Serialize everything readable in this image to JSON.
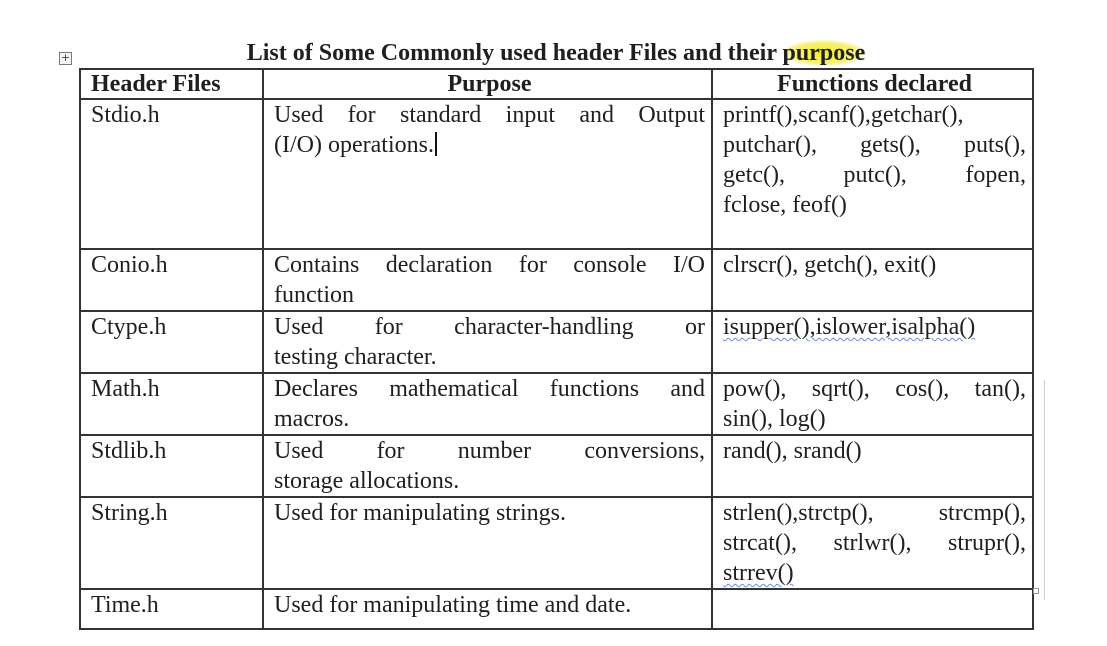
{
  "table_handle_glyph": "+",
  "title": {
    "before": "List of Some Commonly used header Files and their ",
    "highlight": "purpose"
  },
  "headers": {
    "files": "Header Files",
    "purpose": "Purpose",
    "functions_a": "Fun",
    "functions_b": "ctions de",
    "functions_c": "clared"
  },
  "rows": [
    {
      "file": "Stdio.h",
      "purpose_lines": [
        "Used for standard input and Output",
        "(I/O) operations."
      ],
      "function_lines": [
        "printf(),scanf(),getchar(),",
        "putchar(), gets(), puts(),",
        "getc(), putc(), fopen,",
        "fclose, feof()"
      ]
    },
    {
      "file": "Conio.h",
      "purpose_lines": [
        "Contains declaration for console I/O",
        "function"
      ],
      "function_lines": [
        "clrscr(), getch(), exit()"
      ]
    },
    {
      "file": "Ctype.h",
      "purpose_lines": [
        "Used for character-handling or",
        "testing character."
      ],
      "function_lines": [
        "isupper(),islower,isalpha()"
      ]
    },
    {
      "file": "Math.h",
      "purpose_lines": [
        "Declares mathematical functions and",
        "macros."
      ],
      "function_lines": [
        "pow(), sqrt(), cos(), tan(),",
        "sin(), log()"
      ]
    },
    {
      "file": "Stdlib.h",
      "purpose_lines": [
        "Used for number conversions,",
        "storage allocations."
      ],
      "function_lines": [
        "rand(), srand()"
      ]
    },
    {
      "file": "String.h",
      "purpose_lines": [
        "Used for manipulating strings."
      ],
      "function_lines": [
        "strlen(),strctp(), strcmp(),",
        "strcat(), strlwr(), strupr(),",
        "strrev()"
      ]
    },
    {
      "file": "Time.h",
      "purpose_lines": [
        "Used for manipulating time and date."
      ],
      "function_lines": []
    }
  ]
}
